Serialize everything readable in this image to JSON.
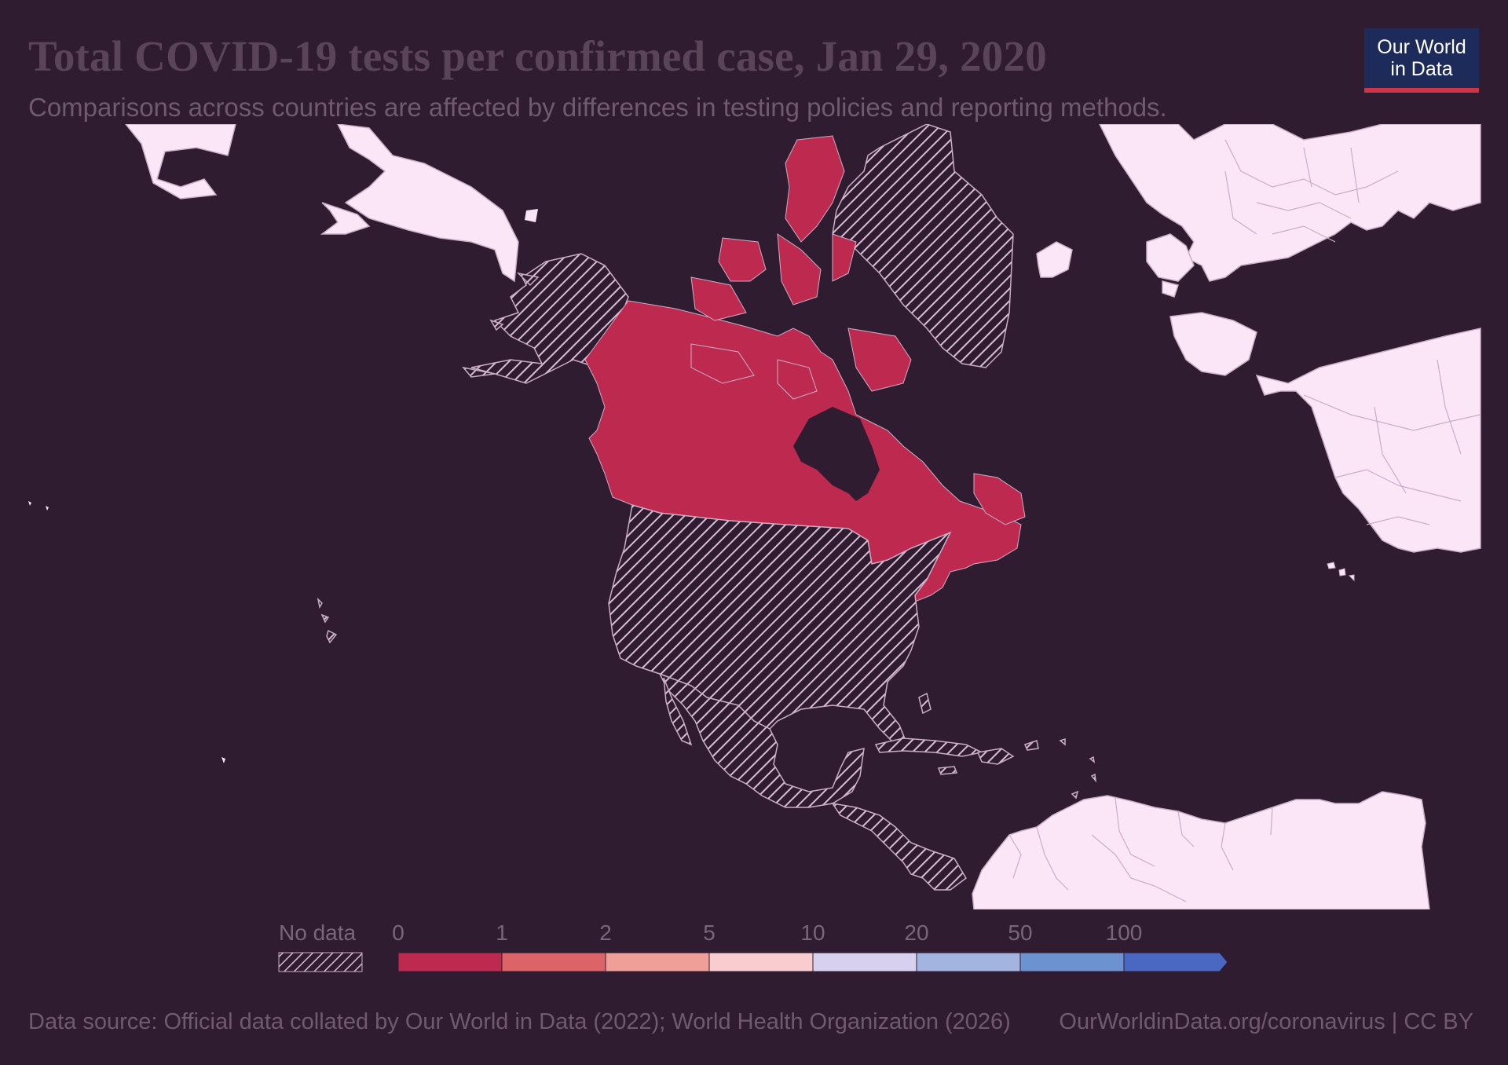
{
  "header": {
    "title": "Total COVID-19 tests per confirmed case, Jan 29, 2020",
    "subtitle": "Comparisons across countries are affected by differences in testing policies and reporting methods."
  },
  "logo": {
    "line1": "Our World",
    "line2": "in Data"
  },
  "legend": {
    "no_data_label": "No data",
    "ticks": [
      "0",
      "1",
      "2",
      "5",
      "10",
      "20",
      "50",
      "100"
    ],
    "bins": [
      {
        "from": "0",
        "to": "1",
        "color": "#be2a4f"
      },
      {
        "from": "1",
        "to": "2",
        "color": "#dc6468"
      },
      {
        "from": "2",
        "to": "5",
        "color": "#f09f98"
      },
      {
        "from": "5",
        "to": "10",
        "color": "#f9cdd0"
      },
      {
        "from": "10",
        "to": "20",
        "color": "#d7d0ee"
      },
      {
        "from": "20",
        "to": "50",
        "color": "#a4b4e1"
      },
      {
        "from": "50",
        "to": "100",
        "color": "#6c92d0"
      },
      {
        "from": "100",
        "to": "",
        "color": "#4a68c2"
      }
    ]
  },
  "map_data": {
    "regions": [
      {
        "name": "Canada",
        "bin": "0-1",
        "color": "#be2a4f"
      },
      {
        "name": "United States",
        "bin": "No data"
      },
      {
        "name": "Mexico",
        "bin": "No data"
      },
      {
        "name": "Greenland",
        "bin": "No data"
      },
      {
        "name": "Central America",
        "bin": "No data"
      }
    ],
    "colors": {
      "background": "#2f1c30",
      "land_other": "#fae6f7",
      "border": "#c9aec6",
      "hatch": "#d9bdd6"
    }
  },
  "footer": {
    "source": "Data source: Official data collated by Our World in Data (2022); World Health Organization (2026)",
    "url": "OurWorldinData.org/coronavirus | CC BY"
  }
}
